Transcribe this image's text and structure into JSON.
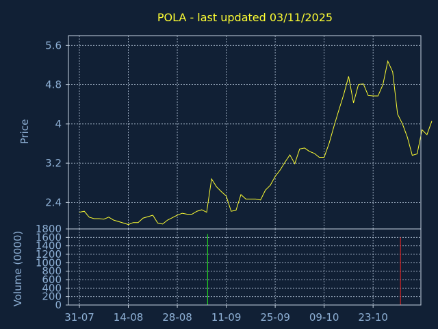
{
  "chart_data": [
    {
      "type": "line",
      "title": "POLA - last updated 03/11/2025",
      "ylabel": "Price",
      "ylim": [
        1.86,
        5.8
      ],
      "yticks": [
        "2.4",
        "3.2",
        "4",
        "4.8",
        "5.6"
      ],
      "xlim": [
        0,
        72
      ],
      "grid": true,
      "line_color": "#ffff33",
      "series": [
        {
          "x": [
            0,
            1,
            2,
            3,
            4,
            5,
            6,
            7,
            8,
            9,
            10,
            11,
            12,
            13,
            14,
            15,
            16,
            17,
            18,
            19,
            20,
            21,
            22,
            23,
            24,
            25,
            26,
            27,
            28,
            29,
            30,
            31,
            32,
            33,
            34,
            35,
            36,
            37,
            38,
            39,
            40,
            41,
            42,
            43,
            44,
            45,
            46,
            47,
            48,
            49,
            50,
            51,
            52,
            53,
            54,
            55,
            56,
            57,
            58,
            59,
            60,
            61,
            62,
            63,
            64,
            65,
            66,
            67,
            68,
            69,
            70,
            71,
            72
          ],
          "values": [
            2.2,
            2.22,
            2.1,
            2.07,
            2.07,
            2.06,
            2.1,
            2.04,
            2.01,
            1.98,
            1.95,
            1.99,
            1.99,
            2.08,
            2.11,
            2.14,
            1.98,
            1.96,
            2.04,
            2.09,
            2.14,
            2.18,
            2.16,
            2.16,
            2.22,
            2.25,
            2.2,
            2.88,
            2.72,
            2.62,
            2.53,
            2.22,
            2.24,
            2.56,
            2.47,
            2.47,
            2.47,
            2.45,
            2.65,
            2.75,
            2.93,
            3.06,
            3.22,
            3.37,
            3.19,
            3.49,
            3.51,
            3.44,
            3.4,
            3.32,
            3.32,
            3.6,
            3.95,
            4.28,
            4.6,
            4.97,
            4.43,
            4.8,
            4.82,
            4.58,
            4.57,
            4.57,
            4.8,
            5.28,
            5.06,
            4.2,
            4.0,
            3.73,
            3.36,
            3.39,
            3.88,
            3.78,
            4.06
          ]
        }
      ]
    },
    {
      "type": "bar",
      "ylabel": "Volume (0000)",
      "ylim": [
        0,
        1800
      ],
      "yticks": [
        "0",
        "200",
        "400",
        "600",
        "800",
        "1000",
        "1200",
        "1400",
        "1600",
        "1800"
      ],
      "xticks": [
        {
          "x": 0,
          "label": "31-07"
        },
        {
          "x": 10,
          "label": "14-08"
        },
        {
          "x": 20,
          "label": "28-08"
        },
        {
          "x": 30,
          "label": "11-09"
        },
        {
          "x": 40,
          "label": "25-09"
        },
        {
          "x": 50,
          "label": "09-10"
        },
        {
          "x": 60,
          "label": "23-10"
        }
      ],
      "bars": [
        {
          "x": 26.2,
          "value": 1680,
          "color": "#22cc22"
        },
        {
          "x": 65.6,
          "value": 1600,
          "color": "#cc2222"
        }
      ]
    }
  ]
}
